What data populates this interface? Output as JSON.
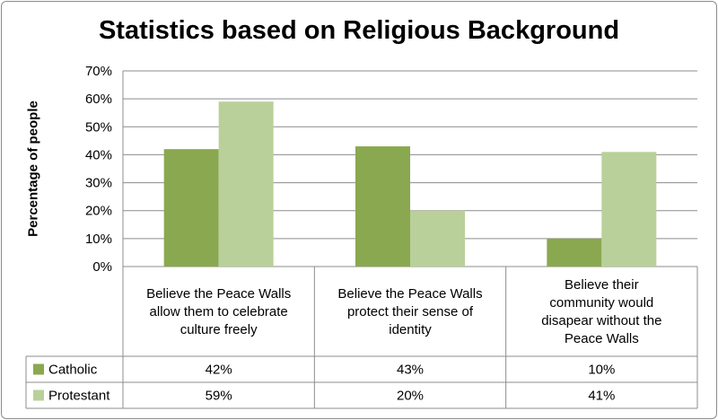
{
  "chart_data": {
    "type": "bar",
    "title": "Statistics based on Religious Background",
    "ylabel": "Percentage of people",
    "xlabel": "",
    "ylim": [
      0,
      70
    ],
    "yticks": [
      0,
      10,
      20,
      30,
      40,
      50,
      60,
      70
    ],
    "ytick_suffix": "%",
    "grid": true,
    "categories": [
      [
        "Believe the Peace Walls",
        "allow them to celebrate",
        "culture freely"
      ],
      [
        "Believe the Peace Walls",
        "protect their sense of",
        "identity"
      ],
      [
        "Believe their",
        "community would",
        "disapear without the",
        "Peace Walls"
      ]
    ],
    "series": [
      {
        "name": "Catholic",
        "values": [
          42,
          43,
          10
        ],
        "labels": [
          "42%",
          "43%",
          "10%"
        ],
        "color": "#8aa84f"
      },
      {
        "name": "Protestant",
        "values": [
          59,
          20,
          41
        ],
        "labels": [
          "59%",
          "20%",
          "41%"
        ],
        "color": "#b9d09a"
      }
    ],
    "legend": "data-table"
  }
}
